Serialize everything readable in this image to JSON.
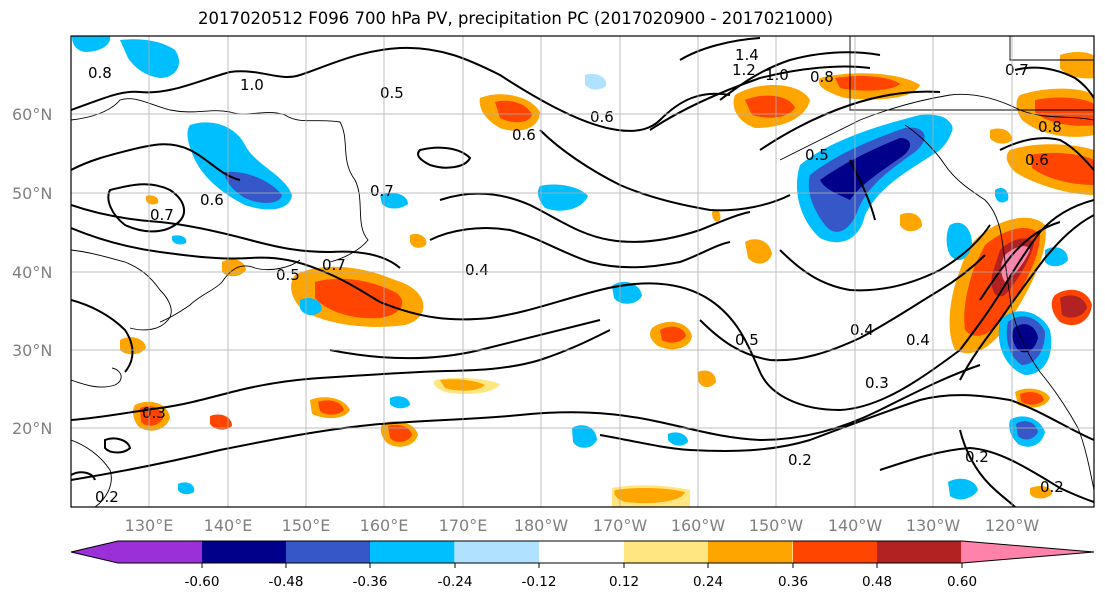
{
  "title": "2017020512 F096 700 hPa PV, precipitation PC (2017020900 - 2017021000)",
  "lat_labels": [
    "60°N",
    "50°N",
    "40°N",
    "30°N",
    "20°N"
  ],
  "lon_labels": [
    "130°E",
    "140°E",
    "150°E",
    "160°E",
    "170°E",
    "180°W",
    "170°W",
    "160°W",
    "150°W",
    "140°W",
    "130°W",
    "120°W"
  ],
  "colorbar": {
    "ticks": [
      "-0.60",
      "-0.48",
      "-0.36",
      "-0.24",
      "-0.12",
      "0.12",
      "0.24",
      "0.36",
      "0.48",
      "0.60"
    ],
    "colors": [
      "#9b30d9",
      "#00008b",
      "#3557c8",
      "#00bfff",
      "#b0e2ff",
      "#ffffff",
      "#ffe680",
      "#ffa500",
      "#ff4500",
      "#b22222",
      "#ff82ab"
    ]
  },
  "contour_labels": [
    "1.4",
    "1.2",
    "1.0",
    "0.8",
    "1.0",
    "0.5",
    "0.6",
    "0.6",
    "0.7",
    "0.6",
    "0.7",
    "0.5",
    "0.7",
    "0.4",
    "0.5",
    "0.4",
    "0.4",
    "0.3",
    "0.2",
    "0.2",
    "0.2",
    "0.3",
    "0.5",
    "0.6",
    "0.8",
    "0.7",
    "0.8",
    "0.2"
  ]
}
